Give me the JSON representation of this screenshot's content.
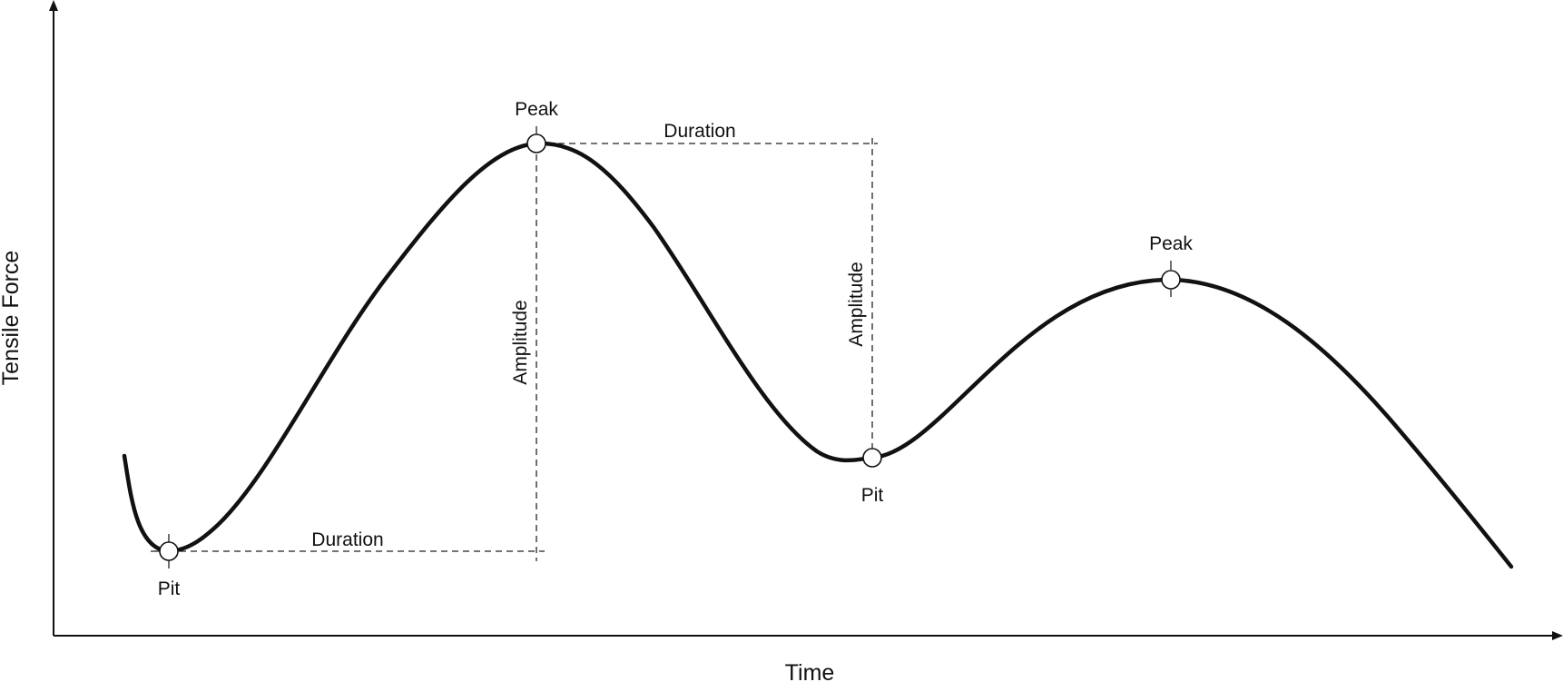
{
  "axes": {
    "x_label": "Time",
    "y_label": "Tensile Force"
  },
  "points": {
    "pit_1": "Pit",
    "peak_1": "Peak",
    "pit_2": "Pit",
    "peak_2": "Peak"
  },
  "annotations": {
    "duration_1": "Duration",
    "duration_2": "Duration",
    "amplitude_1": "Amplitude",
    "amplitude_2": "Amplitude"
  },
  "colors": {
    "line": "#111111",
    "background": "#ffffff"
  }
}
